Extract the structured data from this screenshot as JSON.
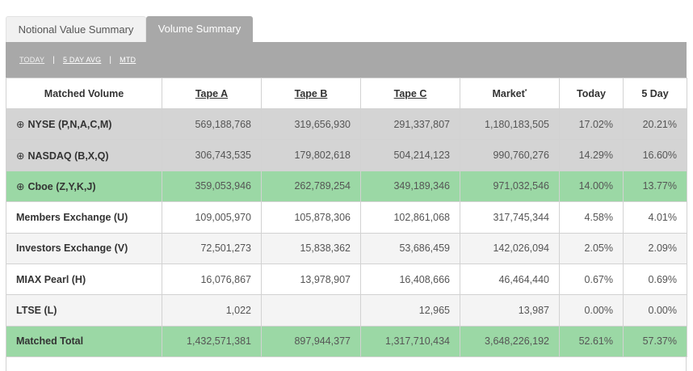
{
  "tabs": [
    {
      "label": "Notional Value Summary",
      "active": false
    },
    {
      "label": "Volume Summary",
      "active": true
    }
  ],
  "toolbar": {
    "today": "TODAY",
    "five_day": "5 DAY AVG",
    "mtd": "MTD",
    "separator": "|"
  },
  "columns": [
    "Matched Volume",
    "Tape A",
    "Tape B",
    "Tape C",
    "Market",
    "Today",
    "5 Day"
  ],
  "market_marker": "*",
  "rows": [
    {
      "name": "NYSE (P,N,A,C,M)",
      "expandable": true,
      "tape_a": "569,188,768",
      "tape_b": "319,656,930",
      "tape_c": "291,337,807",
      "market": "1,180,183,505",
      "today": "17.02%",
      "five_day": "20.21%"
    },
    {
      "name": "NASDAQ (B,X,Q)",
      "expandable": true,
      "tape_a": "306,743,535",
      "tape_b": "179,802,618",
      "tape_c": "504,214,123",
      "market": "990,760,276",
      "today": "14.29%",
      "five_day": "16.60%"
    },
    {
      "name": "Cboe (Z,Y,K,J)",
      "expandable": true,
      "tape_a": "359,053,946",
      "tape_b": "262,789,254",
      "tape_c": "349,189,346",
      "market": "971,032,546",
      "today": "14.00%",
      "five_day": "13.77%"
    },
    {
      "name": "Members Exchange (U)",
      "expandable": false,
      "tape_a": "109,005,970",
      "tape_b": "105,878,306",
      "tape_c": "102,861,068",
      "market": "317,745,344",
      "today": "4.58%",
      "five_day": "4.01%"
    },
    {
      "name": "Investors Exchange (V)",
      "expandable": false,
      "tape_a": "72,501,273",
      "tape_b": "15,838,362",
      "tape_c": "53,686,459",
      "market": "142,026,094",
      "today": "2.05%",
      "five_day": "2.09%"
    },
    {
      "name": "MIAX Pearl (H)",
      "expandable": false,
      "tape_a": "16,076,867",
      "tape_b": "13,978,907",
      "tape_c": "16,408,666",
      "market": "46,464,440",
      "today": "0.67%",
      "five_day": "0.69%"
    },
    {
      "name": "LTSE (L)",
      "expandable": false,
      "tape_a": "1,022",
      "tape_b": "",
      "tape_c": "12,965",
      "market": "13,987",
      "today": "0.00%",
      "five_day": "0.00%"
    },
    {
      "name": "Matched Total",
      "expandable": false,
      "tape_a": "1,432,571,381",
      "tape_b": "897,944,377",
      "tape_c": "1,317,710,434",
      "market": "3,648,226,192",
      "today": "52.61%",
      "five_day": "57.37%"
    }
  ],
  "expand_icon": "circle-plus-icon",
  "colors": {
    "header_bar": "#a8a8a8",
    "row_gray": "#d4d4d4",
    "row_green": "#9bd8a5"
  }
}
